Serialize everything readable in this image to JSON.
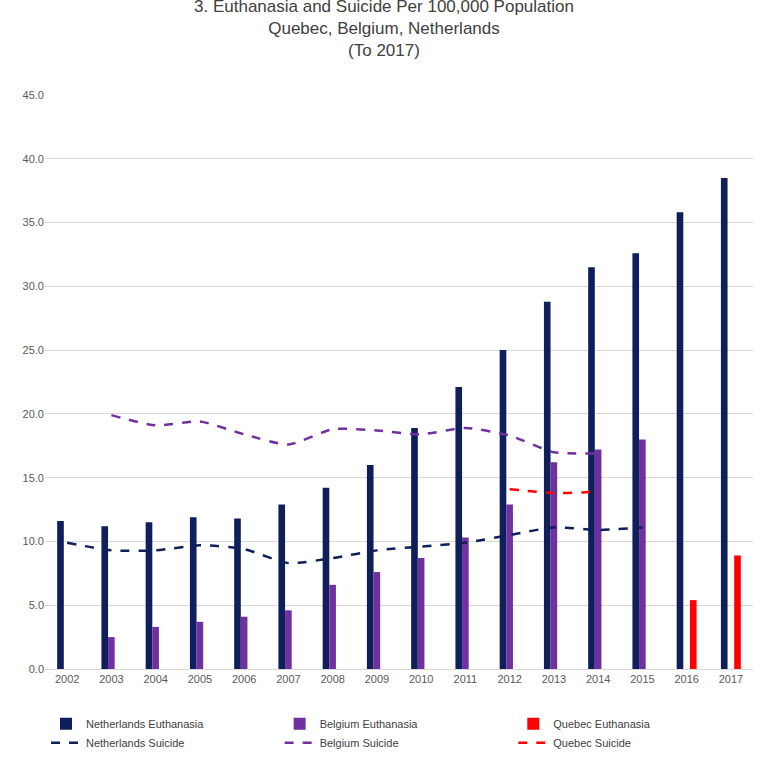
{
  "chart_data": {
    "type": "bar",
    "title": [
      "3. Euthanasia and Suicide Per 100,000 Population",
      "Quebec, Belgium, Netherlands",
      "(To 2017)"
    ],
    "categories": [
      "2002",
      "2003",
      "2004",
      "2005",
      "2006",
      "2007",
      "2008",
      "2009",
      "2010",
      "2011",
      "2012",
      "2013",
      "2014",
      "2015",
      "2016",
      "2017"
    ],
    "series": [
      {
        "name": "Netherlands Euthanasia",
        "type": "bar",
        "color": "#0e1f5b",
        "values": [
          11.6,
          11.2,
          11.5,
          11.9,
          11.8,
          12.9,
          14.2,
          16.0,
          18.9,
          22.1,
          25.0,
          28.8,
          31.5,
          32.6,
          35.8,
          38.5
        ]
      },
      {
        "name": "Belgium Euthanasia",
        "type": "bar",
        "color": "#7030a0",
        "values": [
          null,
          2.5,
          3.3,
          3.7,
          4.1,
          4.6,
          6.6,
          7.6,
          8.7,
          10.3,
          12.9,
          16.2,
          17.2,
          18.0,
          null,
          null
        ]
      },
      {
        "name": "Quebec Euthanasia",
        "type": "bar",
        "color": "#ff0000",
        "values": [
          null,
          null,
          null,
          null,
          null,
          null,
          null,
          null,
          null,
          null,
          null,
          null,
          null,
          null,
          5.4,
          8.9
        ]
      },
      {
        "name": "Netherlands Suicide",
        "type": "line",
        "line_style": "dashed",
        "color": "#0e1f5b",
        "values": [
          9.9,
          9.3,
          9.3,
          9.7,
          9.4,
          8.3,
          8.7,
          9.3,
          9.6,
          9.9,
          10.5,
          11.1,
          10.9,
          11.1,
          null,
          null
        ]
      },
      {
        "name": "Belgium Suicide",
        "type": "line",
        "line_style": "dashed",
        "color": "#7030a0",
        "values": [
          null,
          19.9,
          19.1,
          19.4,
          18.4,
          17.6,
          18.8,
          18.7,
          18.4,
          18.9,
          18.3,
          17.0,
          16.9,
          null,
          null,
          null
        ]
      },
      {
        "name": "Quebec Suicide",
        "type": "line",
        "line_style": "dashed",
        "color": "#ff0000",
        "values": [
          null,
          null,
          null,
          null,
          null,
          null,
          null,
          null,
          null,
          null,
          14.1,
          13.8,
          13.9,
          null,
          null,
          null
        ]
      }
    ],
    "ylim": [
      0,
      45
    ],
    "yticks": [
      {
        "value": 0,
        "label": "0.0"
      },
      {
        "value": 5,
        "label": "5.0"
      },
      {
        "value": 10,
        "label": "10.0"
      },
      {
        "value": 15,
        "label": "15.0"
      },
      {
        "value": 20,
        "label": "20.0"
      },
      {
        "value": 25,
        "label": "25.0"
      },
      {
        "value": 30,
        "label": "30.0"
      },
      {
        "value": 35,
        "label": "35.0"
      },
      {
        "value": 40,
        "label": "40.0"
      },
      {
        "value": 45,
        "label": "45.0"
      }
    ],
    "grid": true,
    "legend": "bottom"
  }
}
